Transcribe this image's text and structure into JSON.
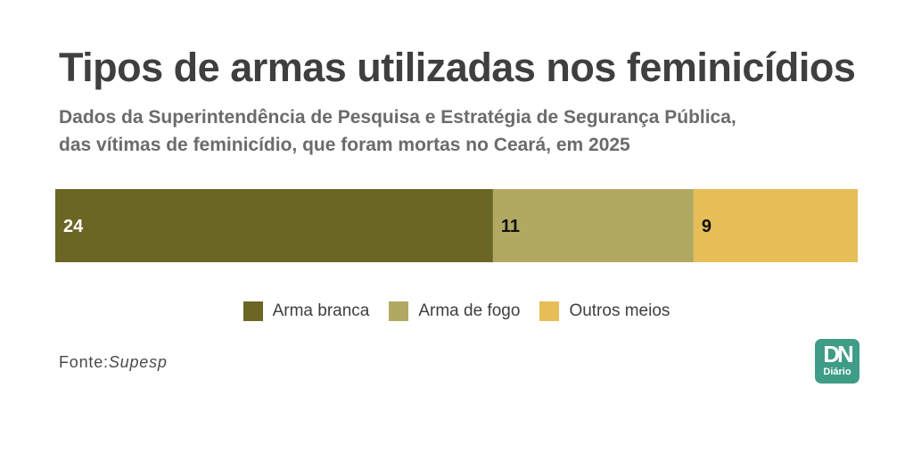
{
  "title": "Tipos de armas utilizadas nos feminicídios",
  "subtitle_line1": "Dados da Superintendência de Pesquisa e Estratégia de Segurança Pública,",
  "subtitle_line2": "das vítimas de feminicídio, que foram mortas no Ceará, em 2025",
  "chart_data": {
    "type": "bar",
    "orientation": "horizontal-stacked",
    "categories": [
      "Arma branca",
      "Arma de fogo",
      "Outros meios"
    ],
    "values": [
      24,
      11,
      9
    ],
    "colors": [
      "#6b6623",
      "#b1a962",
      "#e6bd57"
    ],
    "label_colors": [
      "#ffffff",
      "#111111",
      "#111111"
    ],
    "legend_position": "bottom",
    "grid": false
  },
  "source": {
    "prefix": "Fonte:",
    "name": "Supesp"
  },
  "logo": {
    "main": "DN",
    "sub": "Diário"
  }
}
